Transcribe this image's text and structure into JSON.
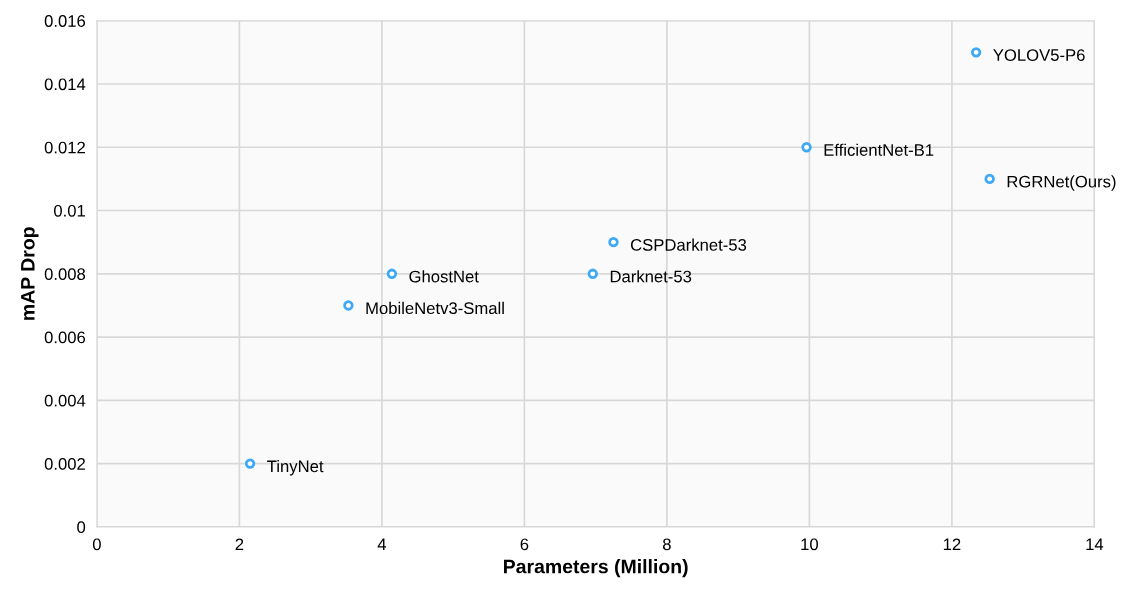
{
  "chart_data": {
    "type": "scatter",
    "xlabel": "Parameters (Million)",
    "ylabel": "mAP Drop",
    "x": [
      2.15,
      3.53,
      4.14,
      6.96,
      7.25,
      9.96,
      12.34,
      12.53
    ],
    "series": [
      {
        "color": "#3fa9f5",
        "values": [
          0.002,
          0.007,
          0.008,
          0.008,
          0.009,
          0.012,
          0.015,
          0.011
        ]
      }
    ],
    "annotations": [
      {
        "text": "TinyNet",
        "x": 2.15,
        "y": 0.002
      },
      {
        "text": "MobileNetv3-Small",
        "x": 3.53,
        "y": 0.007
      },
      {
        "text": "GhostNet",
        "x": 4.14,
        "y": 0.008
      },
      {
        "text": "Darknet-53",
        "x": 6.96,
        "y": 0.008
      },
      {
        "text": "CSPDarknet-53",
        "x": 7.25,
        "y": 0.009
      },
      {
        "text": "EfficientNet-B1",
        "x": 9.96,
        "y": 0.012
      },
      {
        "text": "YOLOV5-P6",
        "x": 12.34,
        "y": 0.015
      },
      {
        "text": "RGRNet(Ours)",
        "x": 12.53,
        "y": 0.011
      }
    ],
    "xlim": [
      0,
      14
    ],
    "xticks": [
      0,
      2,
      4,
      6,
      8,
      10,
      12,
      14
    ],
    "ylim": [
      0,
      0.016
    ],
    "yticks": [
      0,
      0.002,
      0.004,
      0.006,
      0.008,
      0.01,
      0.012,
      0.014,
      0.016
    ],
    "grid": true,
    "marker": "circle",
    "legend": false
  }
}
